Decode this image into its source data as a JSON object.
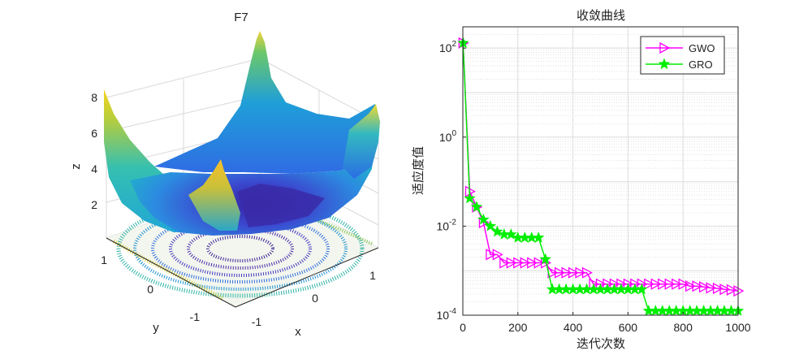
{
  "colors": {
    "gwo": "#ff00ff",
    "gro": "#00ee00",
    "axis": "#262626",
    "grid": "#dcdcdc",
    "surface_low": "#3e26a8",
    "surface_mid": "#1fb3c8",
    "surface_high": "#f9e11e"
  },
  "chart_data": [
    {
      "type": "surface3d",
      "title": "F7",
      "xlabel": "x",
      "ylabel": "y",
      "zlabel": "z",
      "x_ticks": [
        "-1",
        "0",
        "1"
      ],
      "y_ticks": [
        "1",
        "0",
        "-1"
      ],
      "z_ticks": [
        "2",
        "4",
        "6",
        "8"
      ],
      "xlim": [
        -1.28,
        1.28
      ],
      "ylim": [
        -1.28,
        1.28
      ],
      "zlim": [
        0,
        8.8
      ],
      "colormap": "parula",
      "has_contour_projection": true
    },
    {
      "type": "line",
      "title": "收敛曲线",
      "xlabel": "迭代次数",
      "ylabel": "适应度值",
      "yscale": "log",
      "xlim": [
        0,
        1000
      ],
      "ylim": [
        0.0001,
        300
      ],
      "x_ticks": [
        "0",
        "200",
        "400",
        "600",
        "800",
        "1000"
      ],
      "y_ticks": [
        {
          "base": "10",
          "exp": "2"
        },
        {
          "base": "10",
          "exp": "0"
        },
        {
          "base": "10",
          "exp": "-2"
        },
        {
          "base": "10",
          "exp": "-4"
        }
      ],
      "legend_position": "top-right",
      "series": [
        {
          "name": "GWO",
          "marker": "triangle-right",
          "x": [
            1,
            25,
            50,
            75,
            100,
            125,
            150,
            175,
            200,
            225,
            250,
            275,
            300,
            325,
            350,
            375,
            400,
            425,
            450,
            475,
            500,
            525,
            550,
            575,
            600,
            625,
            650,
            675,
            700,
            725,
            750,
            775,
            800,
            825,
            850,
            875,
            900,
            925,
            950,
            975,
            1000
          ],
          "y": [
            130,
            0.06,
            0.027,
            0.012,
            0.0023,
            0.0023,
            0.0015,
            0.0015,
            0.0015,
            0.0015,
            0.0015,
            0.0015,
            0.0015,
            0.0009,
            0.0009,
            0.0009,
            0.0009,
            0.0009,
            0.0009,
            0.0005,
            0.0005,
            0.0005,
            0.0005,
            0.0005,
            0.0005,
            0.0005,
            0.0005,
            0.0005,
            0.0005,
            0.0005,
            0.0005,
            0.0005,
            0.0005,
            0.00045,
            0.00045,
            0.00043,
            0.00041,
            0.0004,
            0.00038,
            0.00037,
            0.00035
          ]
        },
        {
          "name": "GRO",
          "marker": "star",
          "x": [
            1,
            25,
            50,
            75,
            100,
            125,
            150,
            175,
            200,
            225,
            250,
            275,
            300,
            325,
            350,
            375,
            400,
            425,
            450,
            475,
            500,
            525,
            550,
            575,
            600,
            625,
            650,
            675,
            700,
            725,
            750,
            775,
            800,
            825,
            850,
            875,
            900,
            925,
            950,
            975,
            1000
          ],
          "y": [
            130,
            0.042,
            0.027,
            0.014,
            0.01,
            0.0075,
            0.0065,
            0.0065,
            0.0055,
            0.0055,
            0.0055,
            0.0055,
            0.0018,
            0.00038,
            0.00038,
            0.00038,
            0.00038,
            0.00038,
            0.00038,
            0.00038,
            0.00038,
            0.00038,
            0.00038,
            0.00038,
            0.00038,
            0.00038,
            0.00038,
            0.000125,
            0.000125,
            0.000125,
            0.000125,
            0.000125,
            0.000125,
            0.000125,
            0.000125,
            0.000125,
            0.000125,
            0.000125,
            0.000125,
            0.000125,
            0.000125
          ]
        }
      ]
    }
  ]
}
